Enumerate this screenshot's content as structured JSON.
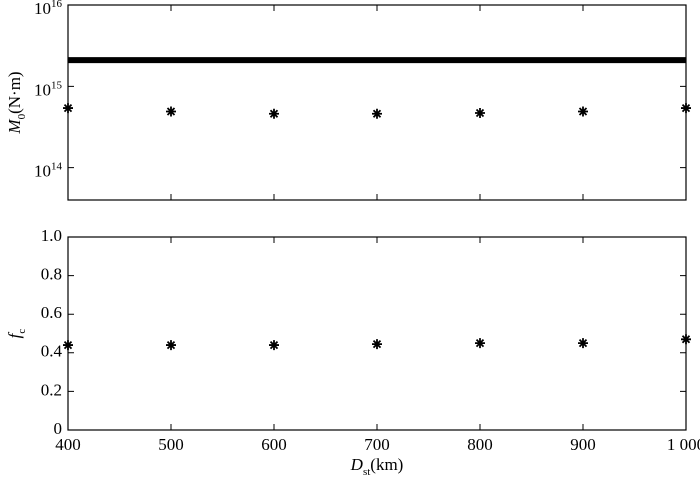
{
  "chart_data": [
    {
      "type": "scatter",
      "ylog": true,
      "ylabel": {
        "main": "M",
        "sub": "0",
        "rest": "(N·m)"
      },
      "xlim": [
        400,
        1000
      ],
      "xticks": [
        400,
        500,
        600,
        700,
        800,
        900,
        1000
      ],
      "ylim": [
        40000000000000,
        10000000000000000
      ],
      "yticks": [
        {
          "value": 10000000000000000,
          "label": "10",
          "sup": "16"
        },
        {
          "value": 1000000000000000,
          "label": "10",
          "sup": "15"
        },
        {
          "value": 100000000000000,
          "label": "10",
          "sup": "14"
        }
      ],
      "series": [
        {
          "style": "line",
          "color": "#000000",
          "x": [
            400,
            1000
          ],
          "values": [
            2100000000000000,
            2100000000000000
          ]
        },
        {
          "style": "marker",
          "color": "#000000",
          "x": [
            400,
            500,
            600,
            700,
            800,
            900,
            1000
          ],
          "values": [
            540000000000000,
            490000000000000,
            460000000000000,
            460000000000000,
            470000000000000,
            490000000000000,
            540000000000000
          ]
        }
      ]
    },
    {
      "type": "scatter",
      "ylog": false,
      "ylabel": {
        "main": "f",
        "sub": "c"
      },
      "xlabel": {
        "main": "D",
        "sub": "st",
        "rest": "(km)"
      },
      "xlim": [
        400,
        1000
      ],
      "xticks": [
        400,
        500,
        600,
        700,
        800,
        900,
        {
          "value": 1000,
          "label": "1 000"
        }
      ],
      "ylim": [
        0,
        1
      ],
      "yticks": [
        0,
        0.2,
        0.4,
        0.6,
        0.8,
        {
          "value": 1,
          "label": "1.0"
        }
      ],
      "series": [
        {
          "style": "marker",
          "color": "#000000",
          "x": [
            400,
            500,
            600,
            700,
            800,
            900,
            1000
          ],
          "values": [
            0.44,
            0.44,
            0.44,
            0.445,
            0.45,
            0.45,
            0.47
          ]
        }
      ]
    }
  ]
}
